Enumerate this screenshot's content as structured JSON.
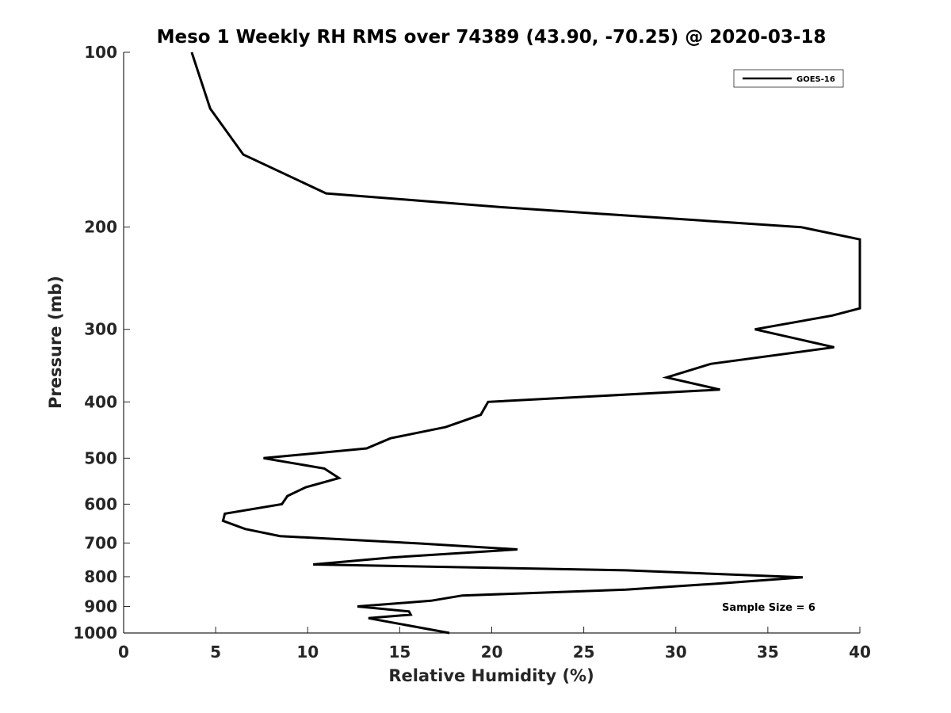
{
  "chart_data": {
    "type": "line",
    "title": "Meso 1 Weekly RH RMS over 74389 (43.90, -70.25) @ 2020-03-18",
    "xlabel": "Relative Humidity (%)",
    "ylabel": "Pressure (mb)",
    "xlim": [
      0,
      40
    ],
    "ylim": [
      100,
      1000
    ],
    "y_scale": "log",
    "y_reversed": true,
    "x_ticks": [
      0,
      5,
      10,
      15,
      20,
      25,
      30,
      35,
      40
    ],
    "x_tick_labels": [
      "0",
      "5",
      "10",
      "15",
      "20",
      "25",
      "30",
      "35",
      "40"
    ],
    "y_ticks": [
      100,
      200,
      300,
      400,
      500,
      600,
      700,
      800,
      900,
      1000
    ],
    "y_tick_labels": [
      "100",
      "200",
      "300",
      "400",
      "500",
      "600",
      "700",
      "800",
      "900",
      "1000"
    ],
    "grid": false,
    "legend_position": "top-right",
    "annotation": "Sample Size = 6",
    "series": [
      {
        "name": "GOES-16",
        "color": "#000000",
        "points": [
          [
            3.7,
            100
          ],
          [
            4.7,
            125
          ],
          [
            6.5,
            150
          ],
          [
            11.0,
            175
          ],
          [
            20.7,
            185
          ],
          [
            36.8,
            200
          ],
          [
            40.0,
            210
          ],
          [
            40.0,
            276
          ],
          [
            38.5,
            284
          ],
          [
            34.3,
            300
          ],
          [
            38.6,
            322
          ],
          [
            31.9,
            344
          ],
          [
            29.5,
            363
          ],
          [
            32.4,
            381
          ],
          [
            19.8,
            400
          ],
          [
            19.4,
            421
          ],
          [
            17.5,
            442
          ],
          [
            14.5,
            462
          ],
          [
            13.2,
            481
          ],
          [
            7.6,
            500
          ],
          [
            10.9,
            521
          ],
          [
            11.7,
            541
          ],
          [
            9.9,
            561
          ],
          [
            8.9,
            581
          ],
          [
            8.6,
            600
          ],
          [
            5.5,
            623
          ],
          [
            5.4,
            641
          ],
          [
            6.6,
            662
          ],
          [
            8.5,
            681
          ],
          [
            16.0,
            701
          ],
          [
            21.4,
            718
          ],
          [
            14.6,
            741
          ],
          [
            10.3,
            762
          ],
          [
            27.3,
            780
          ],
          [
            36.9,
            802
          ],
          [
            32.3,
            822
          ],
          [
            27.3,
            842
          ],
          [
            18.4,
            862
          ],
          [
            16.7,
            880
          ],
          [
            12.7,
            900
          ],
          [
            15.5,
            918
          ],
          [
            15.6,
            930
          ],
          [
            13.3,
            943
          ],
          [
            17.7,
            1000
          ]
        ]
      }
    ]
  }
}
